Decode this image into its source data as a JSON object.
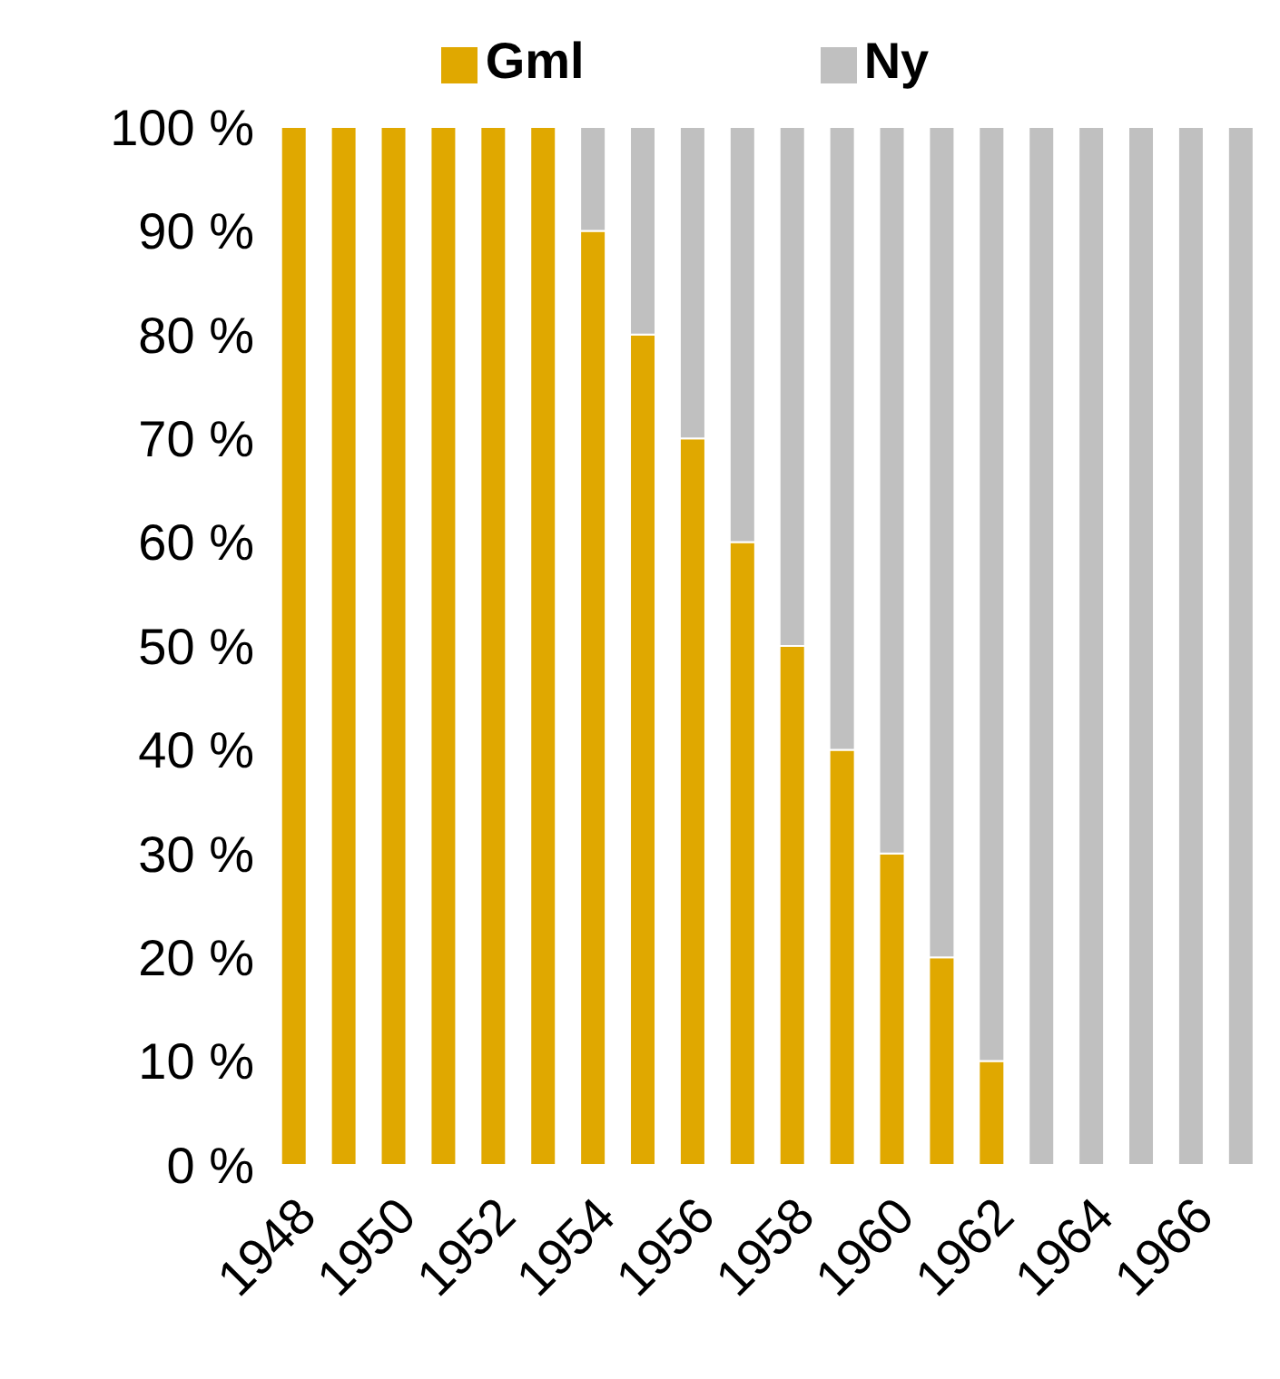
{
  "chart_data": {
    "type": "bar",
    "stacked": true,
    "categories": [
      "1948",
      null,
      "1950",
      null,
      "1952",
      null,
      "1954",
      null,
      "1956",
      null,
      "1958",
      null,
      "1960",
      null,
      "1962",
      null,
      "1964",
      null,
      "1966",
      null
    ],
    "series": [
      {
        "name": "Gml",
        "color": "#e0a800",
        "values": [
          100,
          100,
          100,
          100,
          100,
          100,
          90,
          80,
          70,
          60,
          50,
          40,
          30,
          20,
          10,
          0,
          0,
          0,
          0,
          0
        ]
      },
      {
        "name": "Ny",
        "color": "#c0c0c0",
        "values": [
          0,
          0,
          0,
          0,
          0,
          0,
          10,
          20,
          30,
          40,
          50,
          60,
          70,
          80,
          90,
          100,
          100,
          100,
          100,
          100
        ]
      }
    ],
    "ylim": [
      0,
      100
    ],
    "yticks": [
      {
        "value": 0,
        "label": "0 %"
      },
      {
        "value": 10,
        "label": "10 %"
      },
      {
        "value": 20,
        "label": "20 %"
      },
      {
        "value": 30,
        "label": "30 %"
      },
      {
        "value": 40,
        "label": "40 %"
      },
      {
        "value": 50,
        "label": "50 %"
      },
      {
        "value": 60,
        "label": "60 %"
      },
      {
        "value": 70,
        "label": "70 %"
      },
      {
        "value": 80,
        "label": "80 %"
      },
      {
        "value": 90,
        "label": "90 %"
      },
      {
        "value": 100,
        "label": "100 %"
      }
    ],
    "grid": false,
    "legend": "top"
  }
}
